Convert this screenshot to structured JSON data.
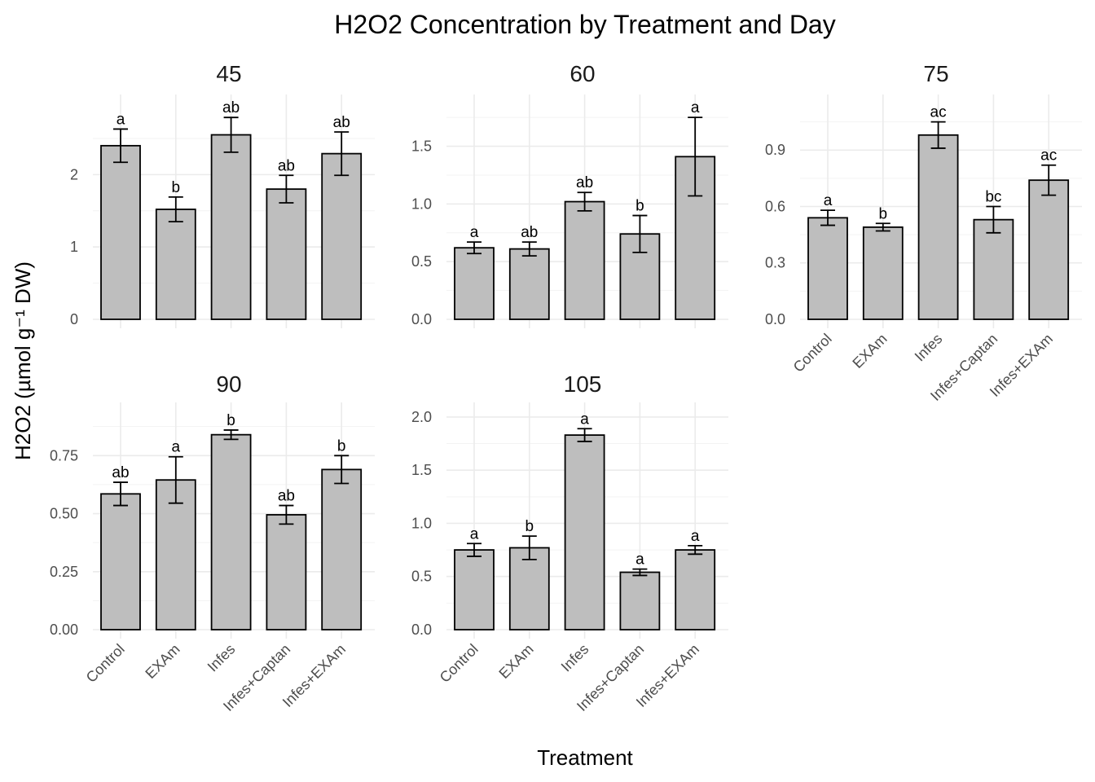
{
  "chart_data": {
    "type": "bar",
    "title": "H2O2 Concentration by Treatment and Day",
    "xlabel": "Treatment",
    "ylabel": "H2O2 (µmol g⁻¹ DW)",
    "categories": [
      "Control",
      "EXAm",
      "Infes",
      "Infes+Captan",
      "Infes+EXAm"
    ],
    "panels": [
      {
        "facet": "45",
        "ylim": [
          0,
          2.95
        ],
        "yticks": [
          0,
          1,
          2
        ],
        "ytick_labels": [
          "0",
          "1",
          "2"
        ],
        "values": [
          2.4,
          1.52,
          2.55,
          1.8,
          2.29
        ],
        "errors": [
          0.23,
          0.17,
          0.24,
          0.19,
          0.3
        ],
        "letters": [
          "a",
          "b",
          "ab",
          "ab",
          "ab"
        ],
        "show_x_labels": false
      },
      {
        "facet": "60",
        "ylim": [
          0,
          1.85
        ],
        "yticks": [
          0,
          0.5,
          1.0,
          1.5
        ],
        "ytick_labels": [
          "0.0",
          "0.5",
          "1.0",
          "1.5"
        ],
        "values": [
          0.62,
          0.61,
          1.02,
          0.74,
          1.41
        ],
        "errors": [
          0.05,
          0.06,
          0.08,
          0.16,
          0.34
        ],
        "letters": [
          "a",
          "ab",
          "ab",
          "b",
          "a"
        ],
        "show_x_labels": false
      },
      {
        "facet": "75",
        "ylim": [
          0,
          1.135
        ],
        "yticks": [
          0,
          0.3,
          0.6,
          0.9
        ],
        "ytick_labels": [
          "0.0",
          "0.3",
          "0.6",
          "0.9"
        ],
        "values": [
          0.54,
          0.49,
          0.98,
          0.53,
          0.74
        ],
        "errors": [
          0.04,
          0.02,
          0.07,
          0.07,
          0.08
        ],
        "letters": [
          "a",
          "b",
          "ac",
          "bc",
          "ac"
        ],
        "show_x_labels": true
      },
      {
        "facet": "90",
        "ylim": [
          0,
          0.93
        ],
        "yticks": [
          0,
          0.25,
          0.5,
          0.75
        ],
        "ytick_labels": [
          "0.00",
          "0.25",
          "0.50",
          "0.75"
        ],
        "values": [
          0.585,
          0.645,
          0.84,
          0.495,
          0.69
        ],
        "errors": [
          0.05,
          0.1,
          0.02,
          0.04,
          0.06
        ],
        "letters": [
          "ab",
          "a",
          "b",
          "ab",
          "b"
        ],
        "show_x_labels": true
      },
      {
        "facet": "105",
        "ylim": [
          0,
          2.03
        ],
        "yticks": [
          0,
          0.5,
          1.0,
          1.5,
          2.0
        ],
        "ytick_labels": [
          "0.0",
          "0.5",
          "1.0",
          "1.5",
          "2.0"
        ],
        "values": [
          0.75,
          0.77,
          1.83,
          0.54,
          0.75
        ],
        "errors": [
          0.06,
          0.11,
          0.06,
          0.03,
          0.04
        ],
        "letters": [
          "a",
          "b",
          "a",
          "a",
          "a"
        ],
        "show_x_labels": true
      }
    ]
  }
}
